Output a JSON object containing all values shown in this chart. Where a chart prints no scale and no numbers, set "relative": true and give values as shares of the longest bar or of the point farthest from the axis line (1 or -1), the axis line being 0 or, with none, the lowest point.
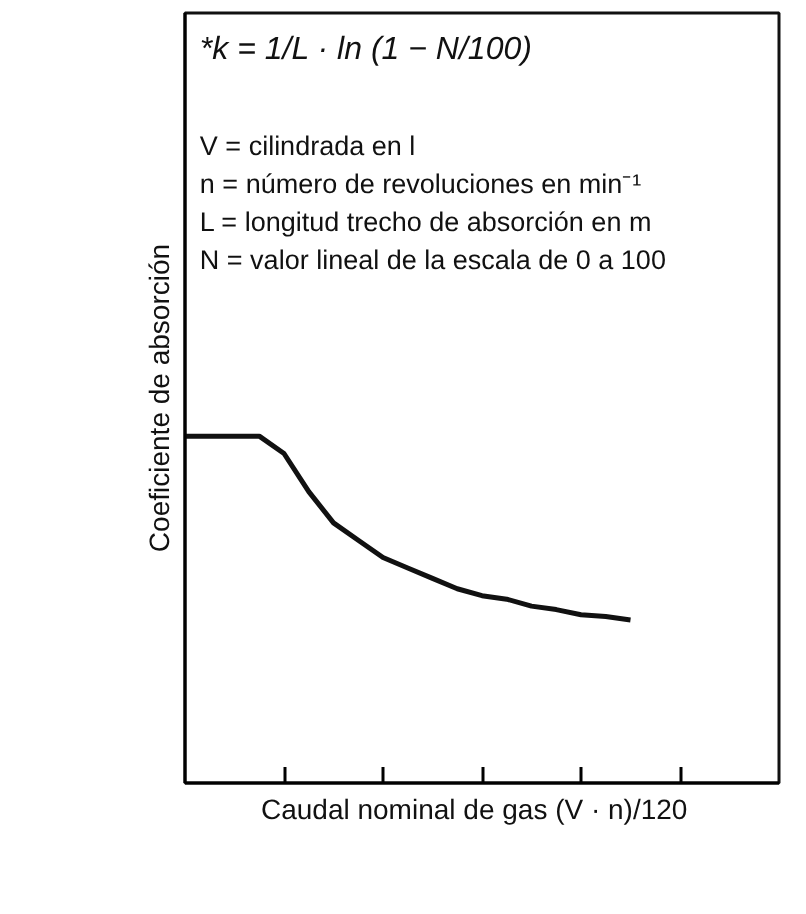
{
  "chart_data": {
    "type": "line",
    "relative": true,
    "xlabel": "Caudal nominal de gas   (V · n)/120",
    "ylabel": "Coeficiente de absorción",
    "categories": [
      null,
      null,
      null,
      null,
      null,
      null,
      null,
      null,
      null,
      null,
      null,
      null,
      null,
      null,
      null,
      null,
      null,
      null,
      null
    ],
    "values": [
      1,
      1,
      1,
      1,
      0.95,
      0.84,
      0.75,
      0.7,
      0.65,
      0.62,
      0.59,
      0.56,
      0.54,
      0.53,
      0.51,
      0.5,
      0.485,
      0.48,
      0.47
    ],
    "color": "#111111",
    "annotations": [
      "*k = 1/L · ln (1 − N/100)",
      "V = cilindrada en l",
      "n = número de revoluciones en min⁻¹",
      "L = longitud trecho de absorción en m",
      "N = valor lineal de la escala de 0 a 100"
    ]
  }
}
